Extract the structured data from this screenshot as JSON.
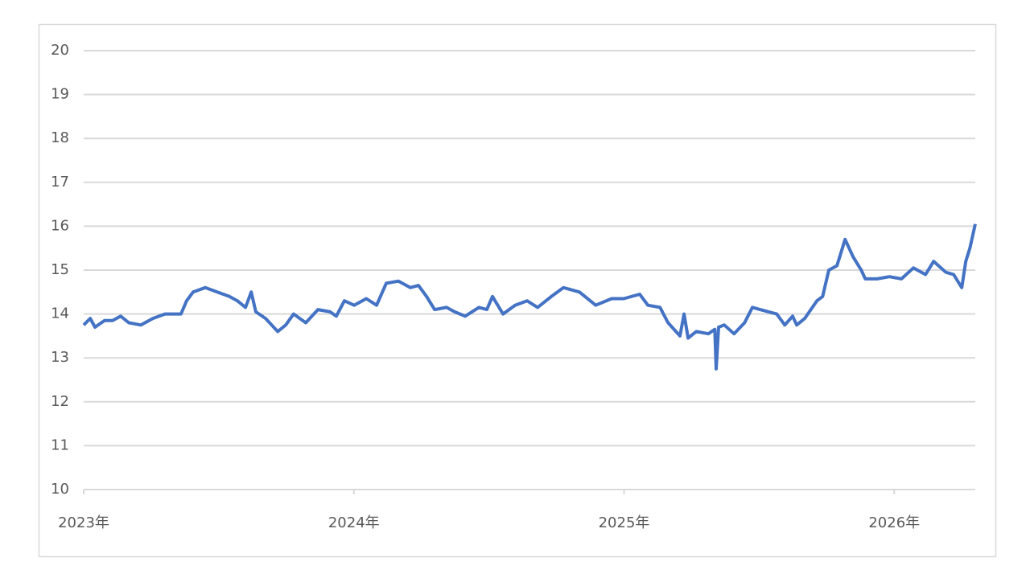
{
  "chart_data": {
    "type": "line",
    "x": [
      2023.0,
      2023.024,
      2023.042,
      2023.077,
      2023.107,
      2023.137,
      2023.167,
      2023.212,
      2023.256,
      2023.301,
      2023.36,
      2023.381,
      2023.405,
      2023.45,
      2023.494,
      2023.539,
      2023.569,
      2023.599,
      2023.62,
      2023.637,
      2023.673,
      2023.718,
      2023.748,
      2023.777,
      2023.822,
      2023.867,
      2023.912,
      2023.935,
      2023.965,
      2024.001,
      2024.046,
      2024.084,
      2024.12,
      2024.165,
      2024.209,
      2024.239,
      2024.269,
      2024.299,
      2024.343,
      2024.373,
      2024.412,
      2024.463,
      2024.492,
      2024.513,
      2024.552,
      2024.597,
      2024.641,
      2024.68,
      2024.731,
      2024.776,
      2024.835,
      2024.895,
      2024.954,
      2024.999,
      2025.058,
      2025.088,
      2025.133,
      2025.163,
      2025.207,
      2025.222,
      2025.237,
      2025.267,
      2025.312,
      2025.336,
      2025.341,
      2025.35,
      2025.371,
      2025.407,
      2025.446,
      2025.475,
      2025.535,
      2025.565,
      2025.595,
      2025.624,
      2025.639,
      2025.669,
      2025.714,
      2025.735,
      2025.758,
      2025.788,
      2025.818,
      2025.848,
      2025.878,
      2025.893,
      2025.937,
      2025.982,
      2026.027,
      2026.071,
      2026.116,
      2026.146,
      2026.191,
      2026.22,
      2026.25,
      2026.265,
      2026.28,
      2026.3
    ],
    "series": [
      {
        "color": "#4472c4",
        "values": [
          13.75,
          13.9,
          13.7,
          13.85,
          13.85,
          13.95,
          13.8,
          13.75,
          13.9,
          14.0,
          14.0,
          14.3,
          14.5,
          14.6,
          14.5,
          14.4,
          14.3,
          14.15,
          14.5,
          14.05,
          13.9,
          13.6,
          13.75,
          14.0,
          13.8,
          14.1,
          14.05,
          13.95,
          14.3,
          14.2,
          14.35,
          14.2,
          14.7,
          14.75,
          14.6,
          14.65,
          14.4,
          14.1,
          14.15,
          14.05,
          13.95,
          14.15,
          14.1,
          14.4,
          14.0,
          14.2,
          14.3,
          14.15,
          14.4,
          14.6,
          14.5,
          14.2,
          14.35,
          14.35,
          14.45,
          14.2,
          14.15,
          13.8,
          13.5,
          14.0,
          13.45,
          13.6,
          13.55,
          13.65,
          12.75,
          13.7,
          13.75,
          13.55,
          13.8,
          14.15,
          14.05,
          14.0,
          13.75,
          13.95,
          13.75,
          13.9,
          14.3,
          14.4,
          15.0,
          15.1,
          15.7,
          15.3,
          15.0,
          14.8,
          14.8,
          14.85,
          14.8,
          15.05,
          14.9,
          15.2,
          14.95,
          14.9,
          14.6,
          15.2,
          15.5,
          16.05
        ]
      }
    ],
    "xlim": [
      2023,
      2026.3
    ],
    "xticks": [
      {
        "value": 2023,
        "label": "2023年"
      },
      {
        "value": 2024,
        "label": "2024年"
      },
      {
        "value": 2025,
        "label": "2025年"
      },
      {
        "value": 2026,
        "label": "2026年"
      }
    ],
    "ylim": [
      10,
      20
    ],
    "yticks": [
      10,
      11,
      12,
      13,
      14,
      15,
      16,
      17,
      18,
      19,
      20
    ],
    "grid": true
  }
}
